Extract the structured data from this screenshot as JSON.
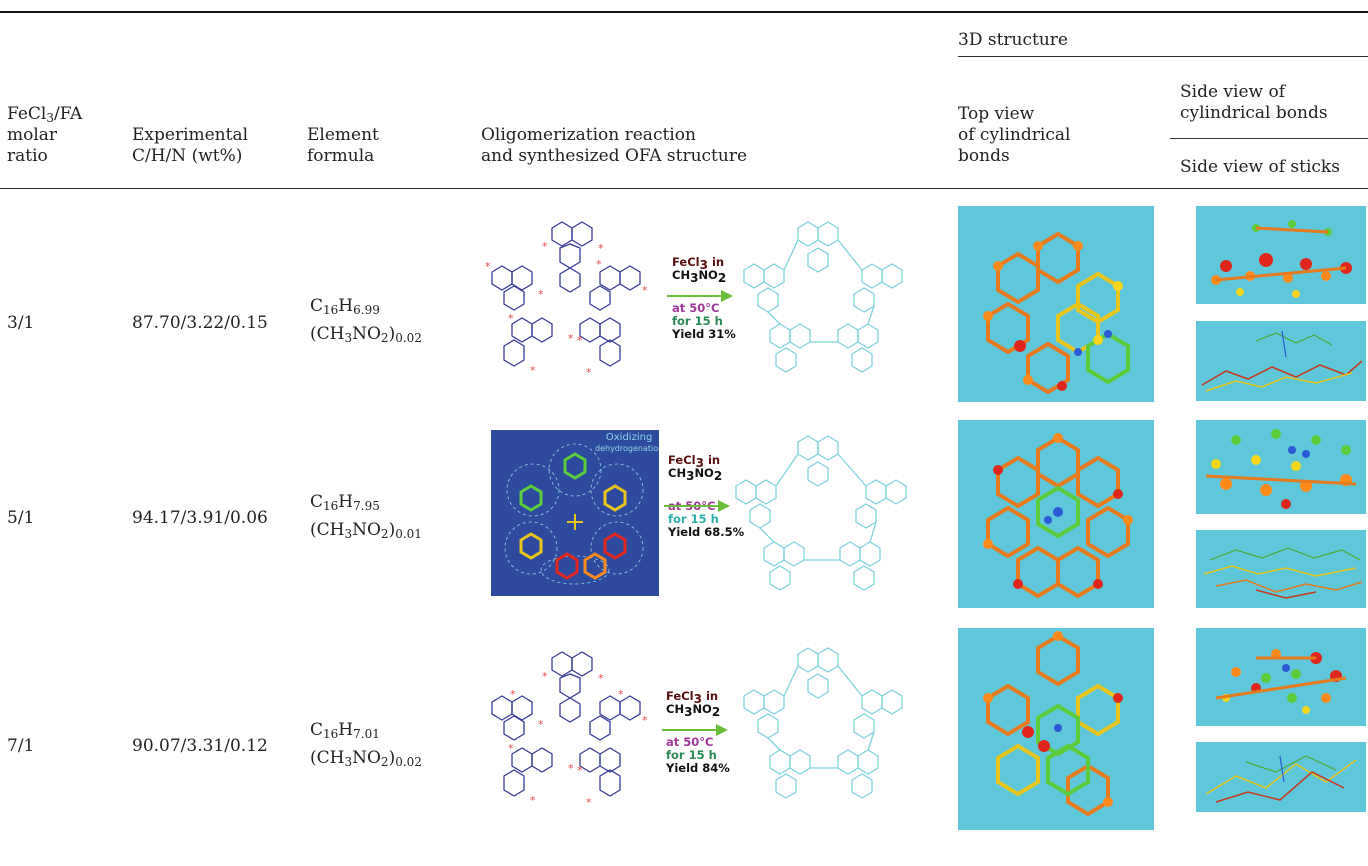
{
  "header": {
    "group_3d": "3D structure",
    "col_ratio": [
      "FeCl",
      "3",
      "/FA",
      "molar",
      "ratio"
    ],
    "col_exp": [
      "Experimental",
      "C/H/N (wt%)"
    ],
    "col_formula": [
      "Element",
      "formula"
    ],
    "col_reaction": [
      "Oligomerization reaction",
      "and synthesized OFA structure"
    ],
    "col_top": [
      "Top view",
      "of cylindrical",
      "bonds"
    ],
    "col_side1": [
      "Side view of",
      "cylindrical bonds"
    ],
    "col_side2": "Side view of sticks"
  },
  "rows": [
    {
      "ratio": "3/1",
      "chn": "87.70/3.22/0.15",
      "formula": {
        "c": "16",
        "h": "6.99",
        "n": "0.02"
      },
      "reagent": "FeCl",
      "reagent_sub": "3",
      "reagent_in": " in",
      "solvent": "CH",
      "solvent_sub1": "3",
      "solvent_mid": "NO",
      "solvent_sub2": "2",
      "temp": "at 50°C",
      "time": "for 15 h",
      "yield": "Yield 31%"
    },
    {
      "ratio": "5/1",
      "chn": "94.17/3.91/0.06",
      "formula": {
        "c": "16",
        "h": "7.95",
        "n": "0.01"
      },
      "reagent": "FeCl",
      "reagent_sub": "3",
      "reagent_in": " in",
      "solvent": "CH",
      "solvent_sub1": "3",
      "solvent_mid": "NO",
      "solvent_sub2": "2",
      "temp": "at 50°C",
      "time": "for 15 h",
      "yield": "Yield 68.5%",
      "inset_label_1": "Oxidizing",
      "inset_label_2": "dehydrogenation"
    },
    {
      "ratio": "7/1",
      "chn": "90.07/3.31/0.12",
      "formula": {
        "c": "16",
        "h": "7.01",
        "n": "0.02"
      },
      "reagent": "FeCl",
      "reagent_sub": "3",
      "reagent_in": " in",
      "solvent": "CH",
      "solvent_sub1": "3",
      "solvent_mid": "NO",
      "solvent_sub2": "2",
      "temp": "at 50°C",
      "time": "for 15 h",
      "yield": "Yield 84%"
    }
  ],
  "colors": {
    "monomer": "#3a3d9a",
    "product": "#7fd3dc",
    "arrow": "#6abf3a",
    "model_bg": "#5ec8da",
    "inset_bg": "#2e4a9e"
  }
}
